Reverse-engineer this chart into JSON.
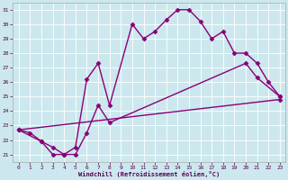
{
  "xlabel": "Windchill (Refroidissement éolien,°C)",
  "xlim": [
    -0.5,
    23.5
  ],
  "ylim": [
    20.5,
    31.5
  ],
  "xticks": [
    0,
    1,
    2,
    3,
    4,
    5,
    6,
    7,
    8,
    9,
    10,
    11,
    12,
    13,
    14,
    15,
    16,
    17,
    18,
    19,
    20,
    21,
    22,
    23
  ],
  "yticks": [
    21,
    22,
    23,
    24,
    25,
    26,
    27,
    28,
    29,
    30,
    31
  ],
  "bg_color": "#cce8ee",
  "line_color": "#880077",
  "lw": 1.0,
  "marker": "D",
  "ms": 2.5,
  "series": [
    {
      "x": [
        0,
        1,
        2,
        3,
        4,
        5,
        6,
        7,
        8,
        10,
        11,
        12,
        13,
        14,
        15,
        16,
        17,
        18,
        19,
        20,
        21,
        22,
        23
      ],
      "y": [
        22.7,
        22.5,
        21.9,
        21.0,
        21.0,
        21.5,
        26.2,
        27.3,
        24.4,
        30.0,
        29.0,
        29.5,
        30.3,
        31.0,
        31.0,
        30.2,
        29.0,
        29.5,
        28.0,
        28.0,
        27.3,
        26.0,
        25.0
      ]
    },
    {
      "x": [
        0,
        2,
        3,
        4,
        5,
        6,
        7,
        8,
        20,
        21,
        23
      ],
      "y": [
        22.7,
        21.9,
        21.5,
        21.0,
        21.0,
        22.5,
        24.4,
        23.2,
        27.3,
        26.3,
        25.0
      ]
    },
    {
      "x": [
        0,
        23
      ],
      "y": [
        22.7,
        24.8
      ]
    }
  ]
}
